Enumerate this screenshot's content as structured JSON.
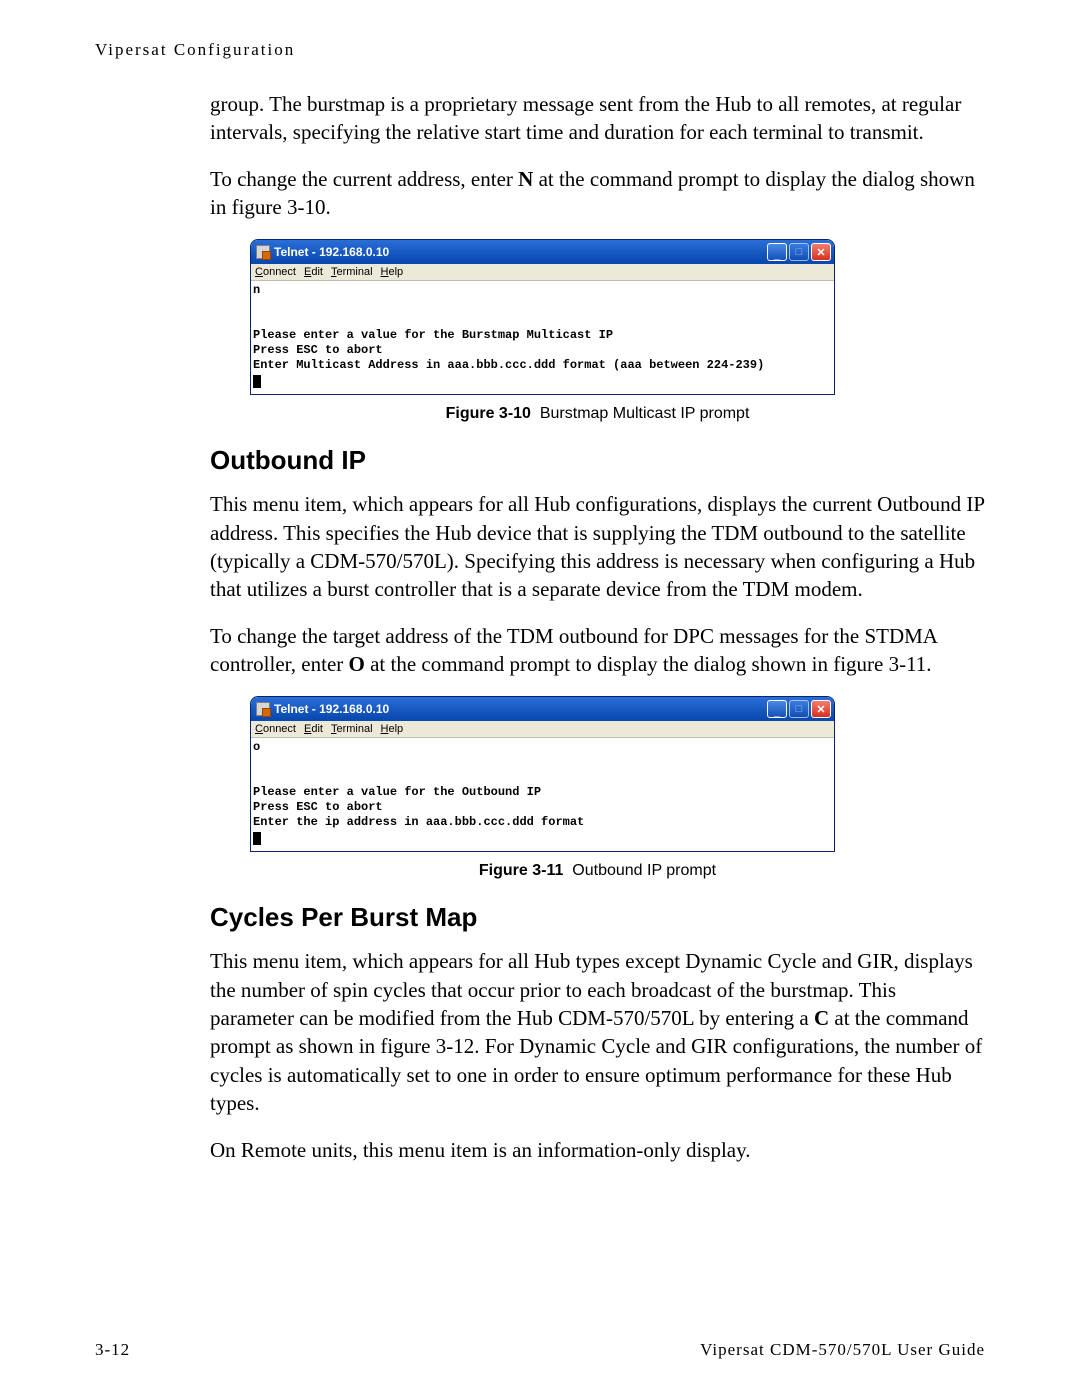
{
  "header": {
    "text": "Vipersat Configuration"
  },
  "p1": "group. The burstmap is a proprietary message sent from the Hub to all remotes, at regular intervals, specifying the relative start time and duration for each terminal to transmit.",
  "p2_a": "To change the current address, enter ",
  "p2_b": "N",
  "p2_c": " at the command prompt to display the dialog shown in figure 3-10.",
  "telnet1": {
    "title": "Telnet - 192.168.0.10",
    "menu": {
      "connect": "Connect",
      "edit": "Edit",
      "terminal": "Terminal",
      "help": "Help"
    },
    "body": "n\n\n\nPlease enter a value for the Burstmap Multicast IP\nPress ESC to abort\nEnter Multicast Address in aaa.bbb.ccc.ddd format (aaa between 224-239)"
  },
  "fig1": {
    "label": "Figure 3-10",
    "caption": "Burstmap Multicast IP prompt"
  },
  "h_outbound": "Outbound IP",
  "p3": "This menu item, which appears for all Hub configurations, displays the current Outbound IP address. This specifies the Hub device that is supplying the TDM outbound to the satellite (typically a CDM-570/570L). Specifying this address is necessary when configuring a Hub that utilizes a burst controller that is a separate device from the TDM modem.",
  "p4_a": "To change the target address of the TDM outbound for DPC messages for the STDMA controller, enter ",
  "p4_b": "O",
  "p4_c": " at the command prompt to display the dialog shown in figure 3-11.",
  "telnet2": {
    "title": "Telnet - 192.168.0.10",
    "menu": {
      "connect": "Connect",
      "edit": "Edit",
      "terminal": "Terminal",
      "help": "Help"
    },
    "body": "o\n\n\nPlease enter a value for the Outbound IP\nPress ESC to abort\nEnter the ip address in aaa.bbb.ccc.ddd format"
  },
  "fig2": {
    "label": "Figure 3-11",
    "caption": "Outbound IP prompt"
  },
  "h_cycles": "Cycles Per Burst Map",
  "p5_a": "This menu item, which appears for all Hub types except Dynamic Cycle and GIR, displays the number of spin cycles that occur prior to each broadcast of the burstmap. This parameter can be modified from the Hub CDM-570/570L by entering a ",
  "p5_b": "C",
  "p5_c": " at the command prompt as shown in figure 3-12. For Dynamic Cycle and GIR configurations, the number of cycles is automatically set to one in order to ensure optimum performance for these Hub types.",
  "p6": "On Remote units, this menu item is an information-only display.",
  "footer": {
    "left": "3-12",
    "right": "Vipersat CDM-570/570L User Guide"
  },
  "colors": {
    "titlebar_start": "#2a6ed8",
    "titlebar_end": "#0a4ab0",
    "close_start": "#f08070",
    "close_end": "#d83020",
    "menubar_bg": "#ece9d8"
  }
}
